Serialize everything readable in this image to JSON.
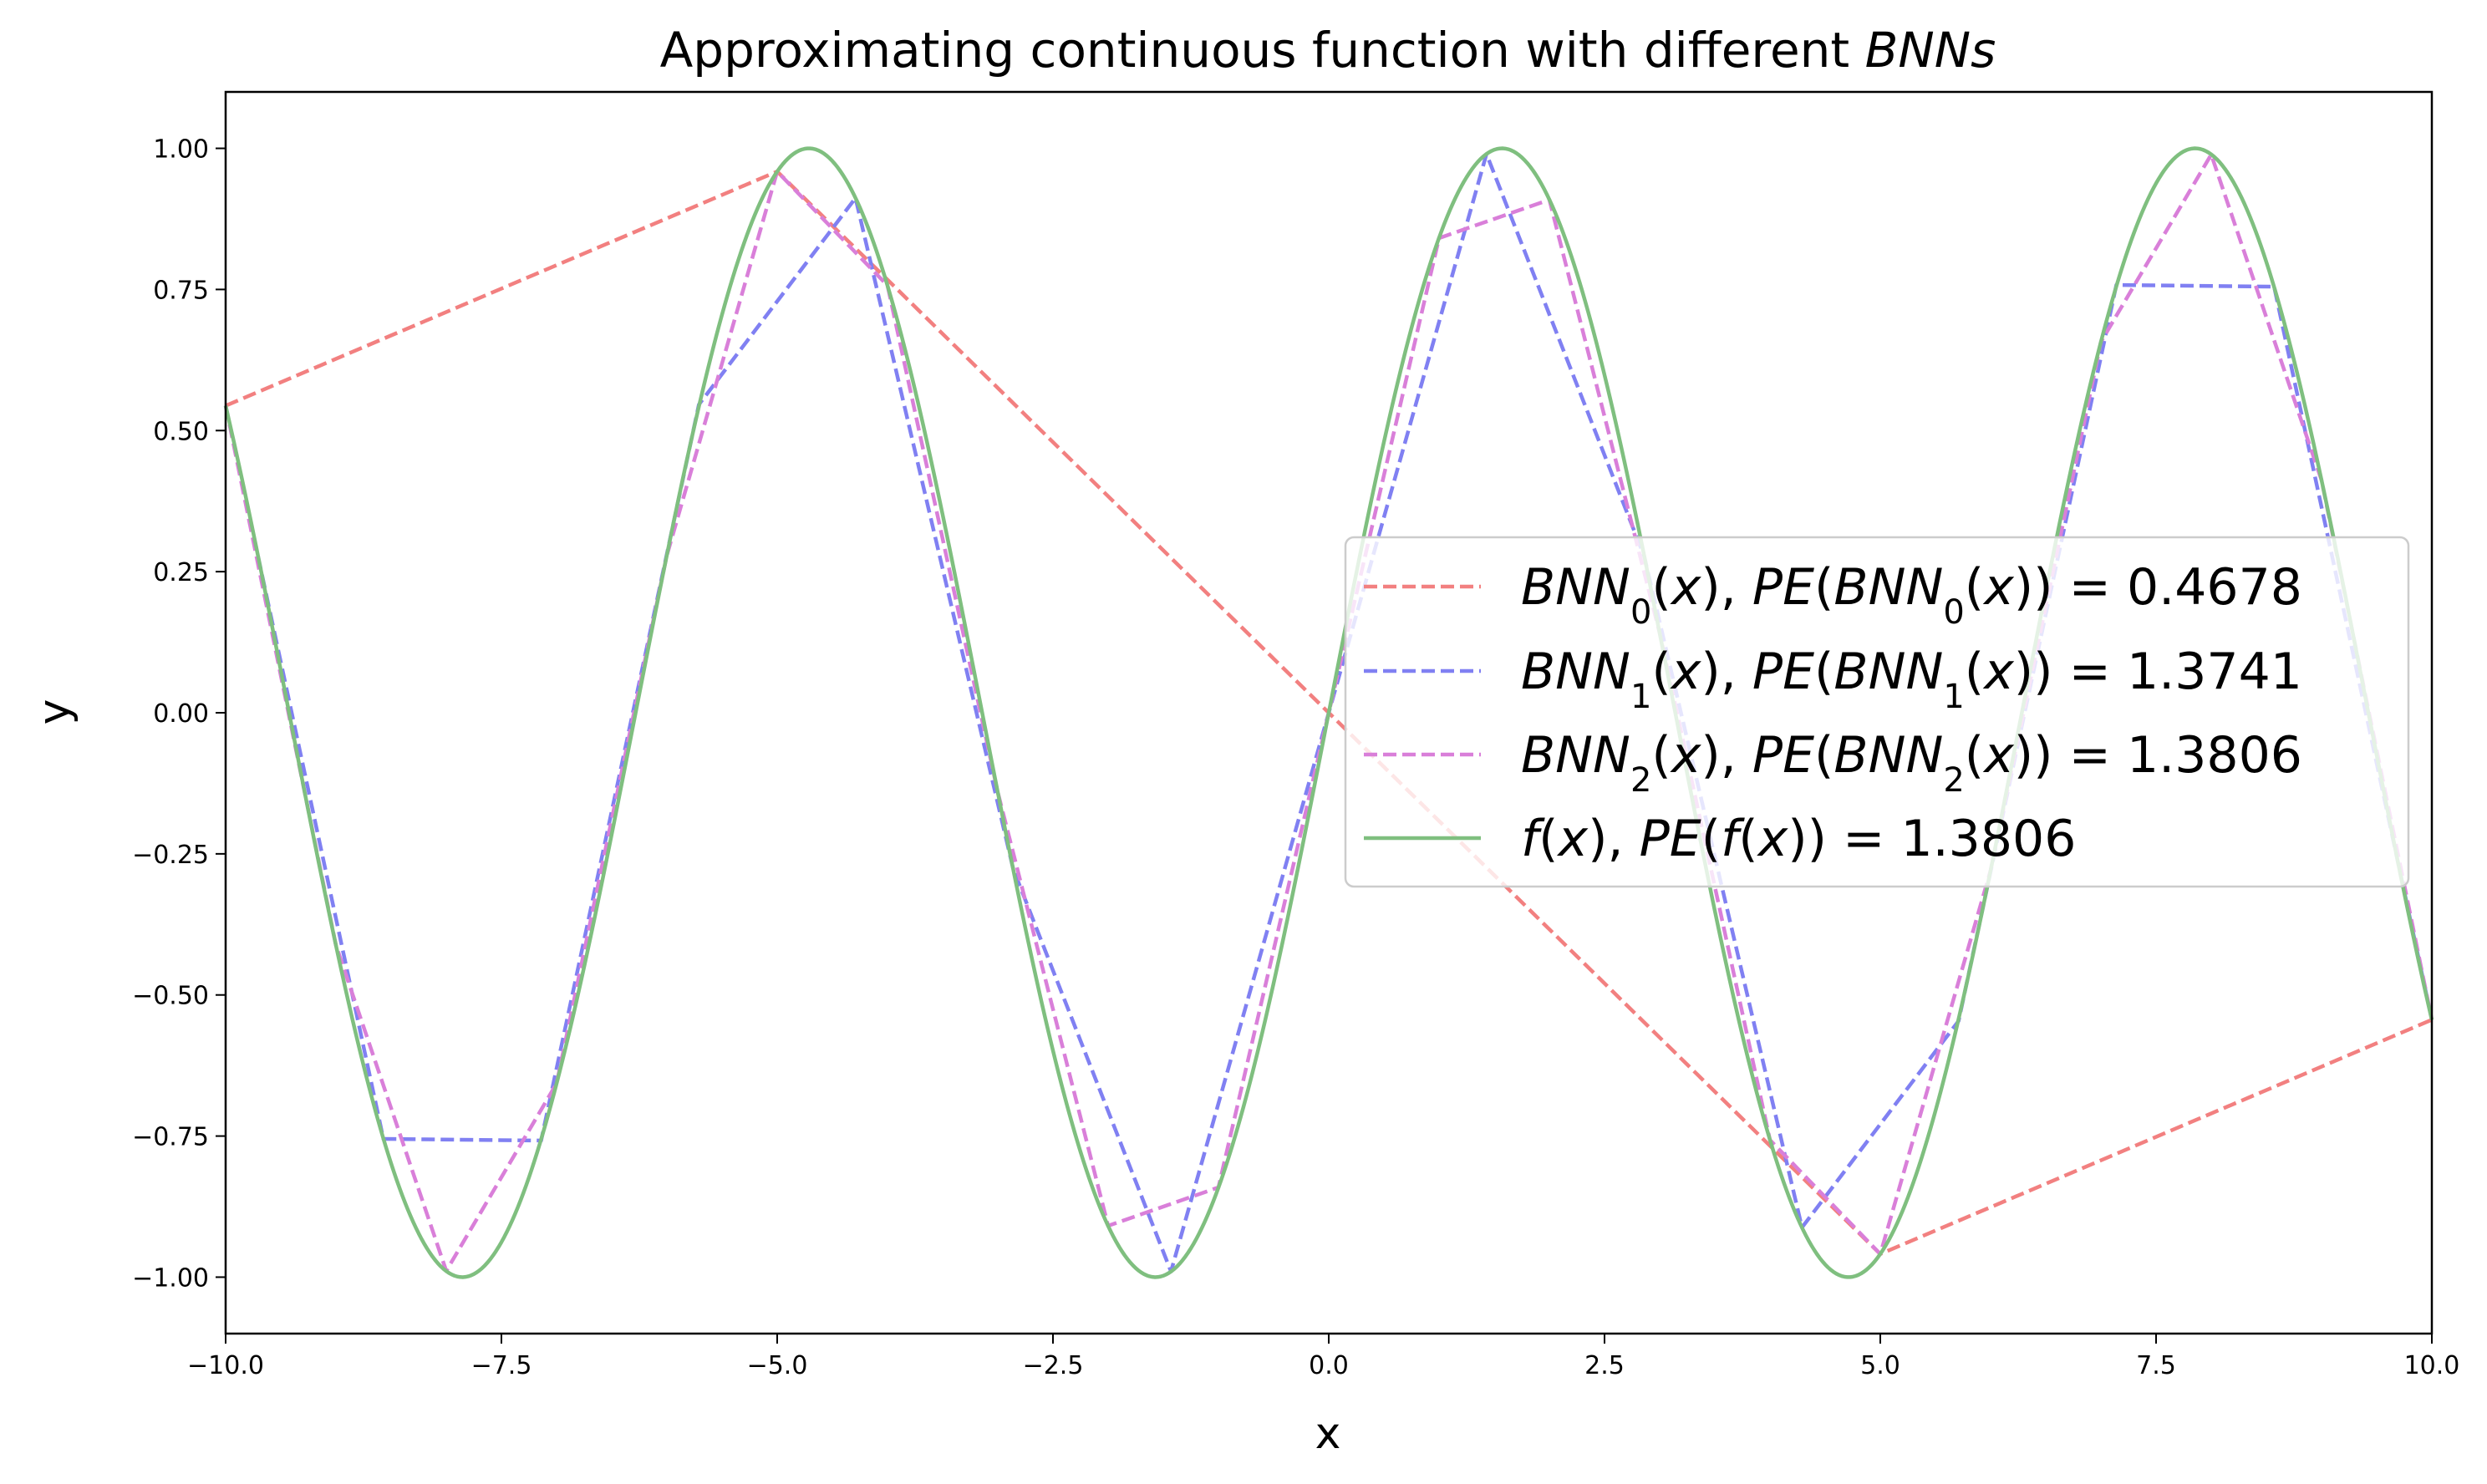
{
  "chart_data": {
    "type": "line",
    "title": "Approximating continuous function with different BNNs",
    "title_parts": [
      {
        "text": "Approximating continuous function with different ",
        "italic": false
      },
      {
        "text": "BNNs",
        "italic": true
      }
    ],
    "xlabel": "x",
    "ylabel": "y",
    "xlim": [
      -10,
      10
    ],
    "ylim": [
      -1.1,
      1.1
    ],
    "xticks": [
      -10.0,
      -7.5,
      -5.0,
      -2.5,
      0.0,
      2.5,
      5.0,
      7.5,
      10.0
    ],
    "xtick_labels": [
      "−10.0",
      "−7.5",
      "−5.0",
      "−2.5",
      "0.0",
      "2.5",
      "5.0",
      "7.5",
      "10.0"
    ],
    "yticks": [
      1.0,
      0.75,
      0.5,
      0.25,
      0.0,
      -0.25,
      -0.5,
      -0.75,
      -1.0
    ],
    "ytick_labels": [
      "1.00",
      "0.75",
      "0.50",
      "0.25",
      "0.00",
      "−0.25",
      "−0.50",
      "−0.75",
      "−1.00"
    ],
    "grid": false,
    "legend_position": "center-right",
    "series": [
      {
        "name": "BNN0(x), PE(BNN0(x)) = 0.4678",
        "label_parts": [
          {
            "t": "BNN",
            "it": true
          },
          {
            "t": "0",
            "sub": true
          },
          {
            "t": "(",
            "it": false
          },
          {
            "t": "x",
            "it": true
          },
          {
            "t": "), ",
            "it": false
          },
          {
            "t": "PE",
            "it": true
          },
          {
            "t": "(",
            "it": false
          },
          {
            "t": "BNN",
            "it": true
          },
          {
            "t": "0",
            "sub": true
          },
          {
            "t": "(",
            "it": false
          },
          {
            "t": "x",
            "it": true
          },
          {
            "t": ")) = 0.4678",
            "it": false
          }
        ],
        "color": "#f28080",
        "style": "dashed",
        "x": [
          -10.0,
          -5.0,
          5.0,
          10.0
        ],
        "y": [
          0.544,
          0.959,
          -0.959,
          -0.544
        ]
      },
      {
        "name": "BNN1(x), PE(BNN1(x)) = 1.3741",
        "label_parts": [
          {
            "t": "BNN",
            "it": true
          },
          {
            "t": "1",
            "sub": true
          },
          {
            "t": "(",
            "it": false
          },
          {
            "t": "x",
            "it": true
          },
          {
            "t": "), ",
            "it": false
          },
          {
            "t": "PE",
            "it": true
          },
          {
            "t": "(",
            "it": false
          },
          {
            "t": "BNN",
            "it": true
          },
          {
            "t": "1",
            "sub": true
          },
          {
            "t": "(",
            "it": false
          },
          {
            "t": "x",
            "it": true
          },
          {
            "t": ")) = 1.3741",
            "it": false
          }
        ],
        "color": "#8080f2",
        "style": "dashed",
        "x": [
          -10.0,
          -8.57,
          -7.14,
          -5.71,
          -4.29,
          -2.86,
          -1.43,
          0.0,
          1.43,
          2.86,
          4.29,
          5.71,
          7.14,
          8.57,
          10.0
        ],
        "y": [
          0.544,
          -0.755,
          -0.758,
          0.546,
          0.912,
          -0.277,
          -0.99,
          0.0,
          0.99,
          0.277,
          -0.912,
          -0.546,
          0.758,
          0.755,
          -0.544
        ]
      },
      {
        "name": "BNN2(x), PE(BNN2(x)) = 1.3806",
        "label_parts": [
          {
            "t": "BNN",
            "it": true
          },
          {
            "t": "2",
            "sub": true
          },
          {
            "t": "(",
            "it": false
          },
          {
            "t": "x",
            "it": true
          },
          {
            "t": "), ",
            "it": false
          },
          {
            "t": "PE",
            "it": true
          },
          {
            "t": "(",
            "it": false
          },
          {
            "t": "BNN",
            "it": true
          },
          {
            "t": "2",
            "sub": true
          },
          {
            "t": "(",
            "it": false
          },
          {
            "t": "x",
            "it": true
          },
          {
            "t": ")) = 1.3806",
            "it": false
          }
        ],
        "color": "#d97fd9",
        "style": "dashed",
        "x": [
          -10.0,
          -9.0,
          -8.0,
          -7.0,
          -6.0,
          -5.0,
          -4.0,
          -3.0,
          -2.0,
          -1.0,
          0.0,
          1.0,
          2.0,
          3.0,
          4.0,
          5.0,
          6.0,
          7.0,
          8.0,
          9.0,
          10.0
        ],
        "y": [
          0.544,
          -0.412,
          -0.989,
          -0.657,
          0.279,
          0.959,
          0.757,
          -0.141,
          -0.909,
          -0.841,
          0.0,
          0.841,
          0.909,
          0.141,
          -0.757,
          -0.959,
          -0.279,
          0.657,
          0.989,
          0.412,
          -0.544
        ]
      },
      {
        "name": "f(x), PE(f(x)) = 1.3806",
        "label_parts": [
          {
            "t": "f",
            "it": true
          },
          {
            "t": "(",
            "it": false
          },
          {
            "t": "x",
            "it": true
          },
          {
            "t": "), ",
            "it": false
          },
          {
            "t": "PE",
            "it": true
          },
          {
            "t": "(",
            "it": false
          },
          {
            "t": "f",
            "it": true
          },
          {
            "t": "(",
            "it": false
          },
          {
            "t": "x",
            "it": true
          },
          {
            "t": ")) = 1.3806",
            "it": false
          }
        ],
        "color": "#7fbf7f",
        "style": "solid",
        "function": "sin",
        "x_range": [
          -10,
          10
        ]
      }
    ]
  }
}
